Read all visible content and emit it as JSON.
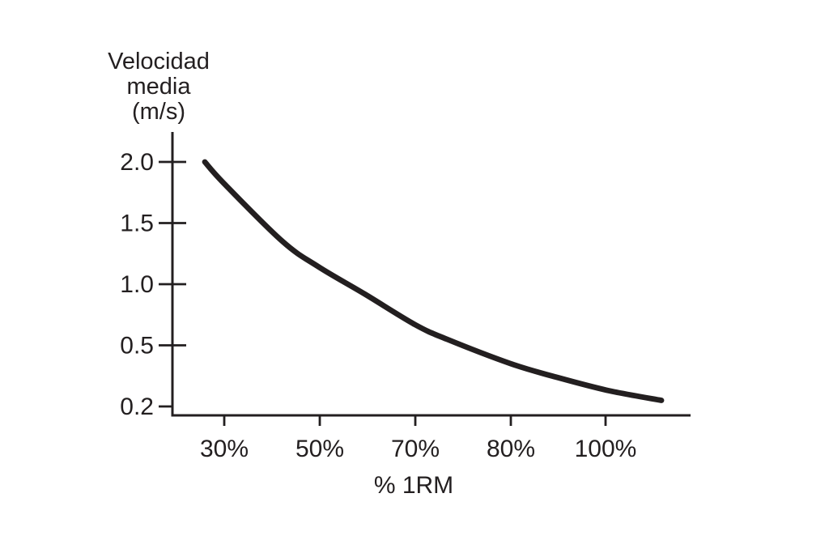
{
  "page": {
    "background_color": "#ffffff",
    "ink_color": "#231f20"
  },
  "chart_data": {
    "type": "line",
    "title": "",
    "ylabel_lines": [
      "Velocidad",
      "media",
      "(m/s)"
    ],
    "xlabel": "% 1RM",
    "y_axis": {
      "tick_labels": [
        "2.0",
        "1.5",
        "1.0",
        "0.5",
        "0.2"
      ],
      "tick_values": [
        2.0,
        1.5,
        1.0,
        0.5,
        0.2
      ],
      "evenly_spaced_ticks": true
    },
    "x_axis": {
      "tick_labels": [
        "30%",
        "50%",
        "70%",
        "80%",
        "100%"
      ],
      "tick_values_pct": [
        30,
        50,
        70,
        80,
        100
      ],
      "evenly_spaced_ticks": true
    },
    "grid": false,
    "legend": false,
    "series": [
      {
        "name": "velocidad-media-vs-1rm",
        "values_at_x_ticks": [
          1.82,
          1.14,
          0.67,
          0.41,
          0.28
        ],
        "start_value": 2.0,
        "end_value": 0.23,
        "points": [
          {
            "x_frac": 0.0,
            "value": 2.0
          },
          {
            "x_frac": 0.043,
            "value": 1.82
          },
          {
            "x_frac": 0.17,
            "value": 1.35
          },
          {
            "x_frac": 0.25,
            "value": 1.14
          },
          {
            "x_frac": 0.35,
            "value": 0.92
          },
          {
            "x_frac": 0.46,
            "value": 0.67
          },
          {
            "x_frac": 0.53,
            "value": 0.55
          },
          {
            "x_frac": 0.67,
            "value": 0.41
          },
          {
            "x_frac": 0.76,
            "value": 0.35
          },
          {
            "x_frac": 0.88,
            "value": 0.28
          },
          {
            "x_frac": 1.0,
            "value": 0.23
          }
        ]
      }
    ]
  }
}
